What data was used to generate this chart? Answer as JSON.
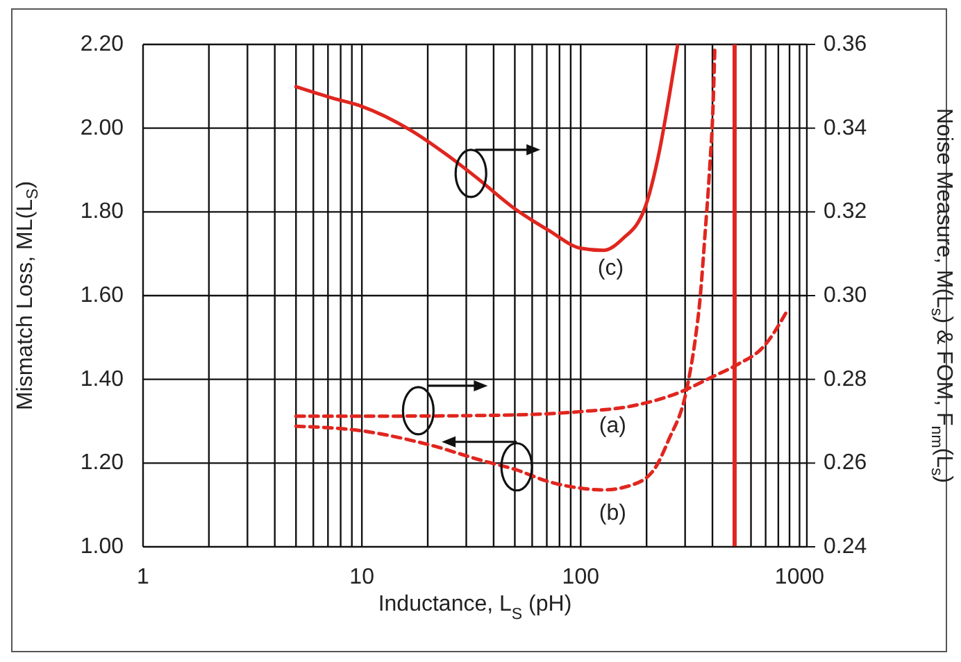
{
  "chart_data": {
    "type": "line",
    "xlabel": "Inductance, L$_{S}$ (pH)",
    "ylabel": "Mismatch Loss, ML(L$_{S}$)",
    "y2label": "Noise Measure, M(L$_{s}$) & FOM, F$_{nm}$(L$_{s}$)",
    "log": "x",
    "xlim": [
      1,
      1080
    ],
    "xticks": [
      1,
      {
        "value": 2,
        "label": null
      },
      {
        "value": 3,
        "label": null
      },
      {
        "value": 4,
        "label": null
      },
      {
        "value": 5,
        "label": null
      },
      {
        "value": 6,
        "label": null
      },
      {
        "value": 7,
        "label": null
      },
      {
        "value": 8,
        "label": null
      },
      {
        "value": 9,
        "label": null
      },
      10,
      {
        "value": 20,
        "label": null
      },
      {
        "value": 30,
        "label": null
      },
      {
        "value": 40,
        "label": null
      },
      {
        "value": 50,
        "label": null
      },
      {
        "value": 60,
        "label": null
      },
      {
        "value": 70,
        "label": null
      },
      {
        "value": 80,
        "label": null
      },
      {
        "value": 90,
        "label": null
      },
      100,
      {
        "value": 200,
        "label": null
      },
      {
        "value": 300,
        "label": null
      },
      {
        "value": 400,
        "label": null
      },
      {
        "value": 500,
        "label": null
      },
      {
        "value": 600,
        "label": null
      },
      {
        "value": 700,
        "label": null
      },
      {
        "value": 800,
        "label": null
      },
      {
        "value": 900,
        "label": null
      },
      1000
    ],
    "ylim": [
      1.0,
      2.2
    ],
    "yticks": [
      {
        "value": 1.0,
        "label": "1.00"
      },
      {
        "value": 1.2,
        "label": "1.20"
      },
      {
        "value": 1.4,
        "label": "1.40"
      },
      {
        "value": 1.6,
        "label": "1.60"
      },
      {
        "value": 1.8,
        "label": "1.80"
      },
      {
        "value": 2.0,
        "label": "2.00"
      },
      {
        "value": 2.2,
        "label": "2.20"
      }
    ],
    "y2lim": [
      0.24,
      0.36
    ],
    "y2ticks": [
      0.24,
      0.26,
      0.28,
      {
        "value": 0.3,
        "label": "0.30"
      },
      0.32,
      0.34,
      0.36
    ],
    "grid": true,
    "marker": "none",
    "series": [
      {
        "axis": "y2",
        "color": "#e0261f",
        "line_style": "solid",
        "x": [
          5,
          7.3,
          10,
          16.6,
          24.5,
          32.5,
          50.7,
          71.3,
          100,
          127,
          155,
          197,
          228,
          257,
          277
        ],
        "values": [
          0.3499,
          0.3472,
          0.3452,
          0.3396,
          0.3336,
          0.3287,
          0.3205,
          0.3156,
          0.3113,
          0.3108,
          0.3135,
          0.3211,
          0.3341,
          0.3493,
          0.3597
        ]
      },
      {
        "axis": "y2",
        "color": "#e0261f",
        "line_style": "dashed",
        "x": [
          5,
          10,
          39.8,
          100,
          170,
          277,
          407,
          510,
          695,
          885
        ],
        "values": [
          0.2712,
          0.2712,
          0.2714,
          0.2723,
          0.2736,
          0.2767,
          0.2808,
          0.2833,
          0.2882,
          0.2967
        ]
      },
      {
        "axis": "y",
        "color": "#e0261f",
        "line_style": "dashed",
        "x": [
          5,
          10,
          20.2,
          36,
          50.7,
          71,
          100,
          127,
          170,
          216,
          252,
          305,
          334,
          350,
          370,
          388,
          403,
          410
        ],
        "values": [
          1.288,
          1.277,
          1.244,
          1.205,
          1.184,
          1.156,
          1.14,
          1.136,
          1.147,
          1.184,
          1.255,
          1.376,
          1.497,
          1.585,
          1.747,
          1.9,
          2.06,
          2.19
        ]
      }
    ],
    "ref_lines": [
      {
        "axis": "x",
        "value": 505,
        "color": "#e0261f",
        "line_style": "solid"
      }
    ],
    "annotations": [
      "(c)",
      "(a)",
      "(b)"
    ]
  }
}
